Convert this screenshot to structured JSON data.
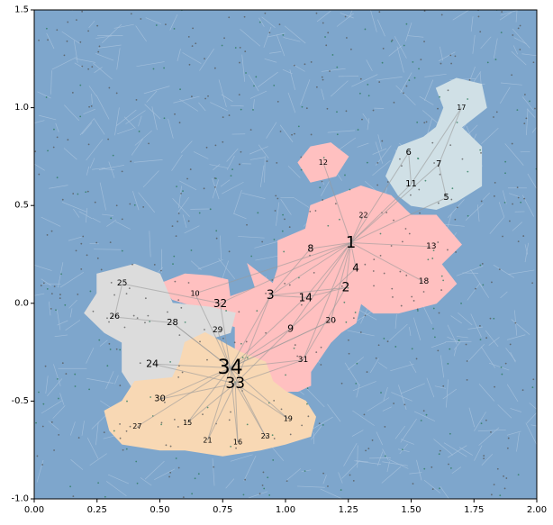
{
  "chart_data": {
    "type": "scatter",
    "title": "",
    "xlabel": "",
    "ylabel": "",
    "xlim": [
      0.0,
      2.0
    ],
    "ylim": [
      -1.0,
      1.5
    ],
    "grid": false,
    "x_ticks": [
      "0.00",
      "0.25",
      "0.50",
      "0.75",
      "1.00",
      "1.25",
      "1.50",
      "1.75",
      "2.00"
    ],
    "y_ticks": [
      "-1.0",
      "-0.5",
      "0.0",
      "0.5",
      "1.0",
      "1.5"
    ],
    "background_color": "#7ea6cc",
    "regions": [
      {
        "color": "#ffc0c0",
        "polygon": [
          [
            0.97,
            0.32
          ],
          [
            1.08,
            0.38
          ],
          [
            1.1,
            0.5
          ],
          [
            1.2,
            0.55
          ],
          [
            1.3,
            0.6
          ],
          [
            1.42,
            0.55
          ],
          [
            1.5,
            0.45
          ],
          [
            1.6,
            0.45
          ],
          [
            1.7,
            0.3
          ],
          [
            1.62,
            0.2
          ],
          [
            1.68,
            0.1
          ],
          [
            1.6,
            0.0
          ],
          [
            1.45,
            -0.05
          ],
          [
            1.35,
            -0.05
          ],
          [
            1.3,
            0.0
          ],
          [
            1.28,
            -0.1
          ],
          [
            1.22,
            -0.15
          ],
          [
            1.18,
            -0.2
          ],
          [
            1.1,
            -0.35
          ],
          [
            1.1,
            -0.42
          ],
          [
            1.05,
            -0.45
          ],
          [
            1.0,
            -0.45
          ],
          [
            0.9,
            -0.35
          ],
          [
            0.8,
            -0.25
          ],
          [
            0.8,
            -0.12
          ],
          [
            0.7,
            -0.08
          ],
          [
            0.75,
            0.02
          ],
          [
            0.88,
            0.08
          ],
          [
            0.85,
            0.2
          ],
          [
            0.95,
            0.1
          ],
          [
            0.97,
            0.18
          ]
        ]
      },
      {
        "color": "#ffc0c0",
        "polygon": [
          [
            1.05,
            0.72
          ],
          [
            1.1,
            0.8
          ],
          [
            1.18,
            0.82
          ],
          [
            1.25,
            0.75
          ],
          [
            1.2,
            0.65
          ],
          [
            1.1,
            0.62
          ]
        ]
      },
      {
        "color": "#ffc0c0",
        "polygon": [
          [
            0.5,
            0.1
          ],
          [
            0.6,
            0.15
          ],
          [
            0.7,
            0.14
          ],
          [
            0.77,
            0.12
          ],
          [
            0.78,
            0.02
          ],
          [
            0.72,
            -0.05
          ],
          [
            0.65,
            -0.02
          ],
          [
            0.55,
            0.02
          ]
        ]
      },
      {
        "color": "#d0e0e6",
        "polygon": [
          [
            1.4,
            0.65
          ],
          [
            1.45,
            0.8
          ],
          [
            1.55,
            0.85
          ],
          [
            1.6,
            0.9
          ],
          [
            1.63,
            1.0
          ],
          [
            1.6,
            1.1
          ],
          [
            1.68,
            1.15
          ],
          [
            1.78,
            1.12
          ],
          [
            1.8,
            1.0
          ],
          [
            1.7,
            0.9
          ],
          [
            1.78,
            0.8
          ],
          [
            1.78,
            0.6
          ],
          [
            1.68,
            0.52
          ],
          [
            1.6,
            0.48
          ],
          [
            1.5,
            0.5
          ],
          [
            1.45,
            0.55
          ]
        ]
      },
      {
        "color": "#dcdcdc",
        "polygon": [
          [
            0.25,
            0.15
          ],
          [
            0.4,
            0.2
          ],
          [
            0.5,
            0.15
          ],
          [
            0.55,
            0.0
          ],
          [
            0.7,
            -0.02
          ],
          [
            0.8,
            -0.05
          ],
          [
            0.78,
            -0.15
          ],
          [
            0.65,
            -0.2
          ],
          [
            0.6,
            -0.3
          ],
          [
            0.5,
            -0.45
          ],
          [
            0.4,
            -0.45
          ],
          [
            0.35,
            -0.35
          ],
          [
            0.35,
            -0.2
          ],
          [
            0.28,
            -0.15
          ],
          [
            0.2,
            -0.05
          ],
          [
            0.25,
            0.05
          ]
        ]
      },
      {
        "color": "#f8d8b4",
        "polygon": [
          [
            0.4,
            -0.4
          ],
          [
            0.55,
            -0.38
          ],
          [
            0.58,
            -0.3
          ],
          [
            0.6,
            -0.2
          ],
          [
            0.68,
            -0.15
          ],
          [
            0.75,
            -0.2
          ],
          [
            0.82,
            -0.25
          ],
          [
            0.92,
            -0.3
          ],
          [
            0.95,
            -0.4
          ],
          [
            1.0,
            -0.45
          ],
          [
            1.08,
            -0.5
          ],
          [
            1.12,
            -0.58
          ],
          [
            1.1,
            -0.68
          ],
          [
            1.0,
            -0.72
          ],
          [
            0.9,
            -0.75
          ],
          [
            0.75,
            -0.78
          ],
          [
            0.6,
            -0.75
          ],
          [
            0.5,
            -0.75
          ],
          [
            0.35,
            -0.72
          ],
          [
            0.3,
            -0.65
          ],
          [
            0.28,
            -0.55
          ],
          [
            0.35,
            -0.5
          ]
        ]
      }
    ],
    "nodes": [
      {
        "label": "1",
        "x": 1.26,
        "y": 0.31,
        "size": 18
      },
      {
        "label": "2",
        "x": 1.24,
        "y": 0.08,
        "size": 14
      },
      {
        "label": "3",
        "x": 0.94,
        "y": 0.04,
        "size": 14
      },
      {
        "label": "4",
        "x": 1.28,
        "y": 0.18,
        "size": 12
      },
      {
        "label": "5",
        "x": 1.64,
        "y": 0.54,
        "size": 10
      },
      {
        "label": "6",
        "x": 1.49,
        "y": 0.77,
        "size": 10
      },
      {
        "label": "7",
        "x": 1.61,
        "y": 0.71,
        "size": 10
      },
      {
        "label": "8",
        "x": 1.1,
        "y": 0.28,
        "size": 11
      },
      {
        "label": "9",
        "x": 1.02,
        "y": -0.13,
        "size": 11
      },
      {
        "label": "10",
        "x": 0.64,
        "y": 0.05,
        "size": 8
      },
      {
        "label": "11",
        "x": 1.5,
        "y": 0.61,
        "size": 10
      },
      {
        "label": "12",
        "x": 1.15,
        "y": 0.72,
        "size": 8
      },
      {
        "label": "13",
        "x": 1.58,
        "y": 0.29,
        "size": 9
      },
      {
        "label": "14",
        "x": 1.08,
        "y": 0.03,
        "size": 12
      },
      {
        "label": "16",
        "x": 0.81,
        "y": -0.71,
        "size": 8
      },
      {
        "label": "17",
        "x": 1.7,
        "y": 1.0,
        "size": 8
      },
      {
        "label": "18",
        "x": 1.55,
        "y": 0.11,
        "size": 9
      },
      {
        "label": "19",
        "x": 1.01,
        "y": -0.59,
        "size": 8
      },
      {
        "label": "20",
        "x": 1.18,
        "y": -0.09,
        "size": 9
      },
      {
        "label": "21",
        "x": 0.69,
        "y": -0.7,
        "size": 8
      },
      {
        "label": "22",
        "x": 1.31,
        "y": 0.45,
        "size": 8
      },
      {
        "label": "23",
        "x": 0.92,
        "y": -0.68,
        "size": 8
      },
      {
        "label": "24",
        "x": 0.47,
        "y": -0.31,
        "size": 11
      },
      {
        "label": "25",
        "x": 0.35,
        "y": 0.1,
        "size": 9
      },
      {
        "label": "26",
        "x": 0.32,
        "y": -0.07,
        "size": 9
      },
      {
        "label": "27",
        "x": 0.41,
        "y": -0.63,
        "size": 8
      },
      {
        "label": "28",
        "x": 0.55,
        "y": -0.1,
        "size": 10
      },
      {
        "label": "29",
        "x": 0.73,
        "y": -0.14,
        "size": 9
      },
      {
        "label": "30",
        "x": 0.5,
        "y": -0.49,
        "size": 10
      },
      {
        "label": "31",
        "x": 1.07,
        "y": -0.29,
        "size": 9
      },
      {
        "label": "32",
        "x": 0.74,
        "y": -0.0,
        "size": 12
      },
      {
        "label": "33",
        "x": 0.8,
        "y": -0.41,
        "size": 17
      },
      {
        "label": "34",
        "x": 0.78,
        "y": -0.33,
        "size": 22
      },
      {
        "label": "15",
        "x": 0.61,
        "y": -0.61,
        "size": 8
      }
    ],
    "edges": [
      [
        "1",
        "2"
      ],
      [
        "1",
        "3"
      ],
      [
        "1",
        "4"
      ],
      [
        "1",
        "8"
      ],
      [
        "1",
        "14"
      ],
      [
        "1",
        "20"
      ],
      [
        "1",
        "22"
      ],
      [
        "1",
        "13"
      ],
      [
        "1",
        "18"
      ],
      [
        "1",
        "9"
      ],
      [
        "1",
        "31"
      ],
      [
        "1",
        "12"
      ],
      [
        "1",
        "11"
      ],
      [
        "1",
        "5"
      ],
      [
        "1",
        "6"
      ],
      [
        "1",
        "7"
      ],
      [
        "1",
        "32"
      ],
      [
        "1",
        "10"
      ],
      [
        "34",
        "33"
      ],
      [
        "34",
        "9"
      ],
      [
        "34",
        "31"
      ],
      [
        "34",
        "3"
      ],
      [
        "34",
        "14"
      ],
      [
        "34",
        "32"
      ],
      [
        "34",
        "29"
      ],
      [
        "34",
        "28"
      ],
      [
        "34",
        "24"
      ],
      [
        "34",
        "30"
      ],
      [
        "34",
        "27"
      ],
      [
        "34",
        "16"
      ],
      [
        "34",
        "19"
      ],
      [
        "34",
        "21"
      ],
      [
        "34",
        "23"
      ],
      [
        "34",
        "15"
      ],
      [
        "34",
        "10"
      ],
      [
        "34",
        "20"
      ],
      [
        "33",
        "9"
      ],
      [
        "33",
        "31"
      ],
      [
        "33",
        "15"
      ],
      [
        "33",
        "16"
      ],
      [
        "33",
        "19"
      ],
      [
        "33",
        "21"
      ],
      [
        "33",
        "23"
      ],
      [
        "33",
        "30"
      ],
      [
        "33",
        "3"
      ],
      [
        "2",
        "14"
      ],
      [
        "2",
        "3"
      ],
      [
        "2",
        "31"
      ],
      [
        "4",
        "9"
      ],
      [
        "8",
        "3"
      ],
      [
        "14",
        "3"
      ],
      [
        "20",
        "34"
      ],
      [
        "25",
        "32"
      ],
      [
        "26",
        "28"
      ],
      [
        "28",
        "34"
      ],
      [
        "24",
        "33"
      ],
      [
        "17",
        "7"
      ],
      [
        "17",
        "11"
      ],
      [
        "6",
        "11"
      ],
      [
        "5",
        "7"
      ],
      [
        "25",
        "26"
      ]
    ],
    "node_label_color": "#000000",
    "edge_color": "#999999",
    "point_colors": [
      "#2a7a5a",
      "#555555"
    ]
  }
}
